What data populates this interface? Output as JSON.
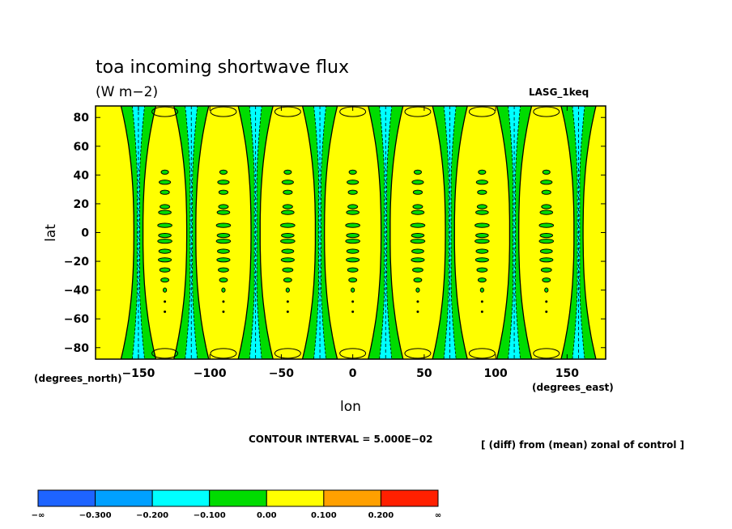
{
  "chart_data": {
    "type": "contour",
    "title": "toa incoming shortwave flux",
    "units": "(W m−2)",
    "model": "LASG_1keq",
    "xlabel": "lon",
    "ylabel": "lat",
    "x_unit_label": "(degrees_east)",
    "y_unit_label": "(degrees_north)",
    "xlim": [
      -180,
      177
    ],
    "ylim": [
      -88,
      88
    ],
    "x_ticks": [
      -150,
      -100,
      -50,
      0,
      50,
      100,
      150
    ],
    "y_ticks": [
      80,
      60,
      40,
      20,
      0,
      -20,
      -40,
      -60,
      -80
    ],
    "contour_interval_text": "CONTOUR INTERVAL = 5.000E−02",
    "description_text": "[ (diff) from (mean) zonal of control ]",
    "band_centers_lon": [
      -150,
      -113,
      -68,
      -23,
      23,
      68,
      113,
      158
    ],
    "colorbar": {
      "labels": [
        "−∞",
        "−0.300",
        "−0.200",
        "−0.100",
        "0.00",
        "0.100",
        "0.200",
        "∞"
      ],
      "colors": [
        "#1e64ff",
        "#00a0ff",
        "#00ffff",
        "#00dc00",
        "#ffff00",
        "#ffa000",
        "#ff2000"
      ]
    },
    "colors": {
      "background_field": "#ffff00",
      "negative_band": "#00dc00",
      "strong_negative": "#00ffff"
    }
  }
}
